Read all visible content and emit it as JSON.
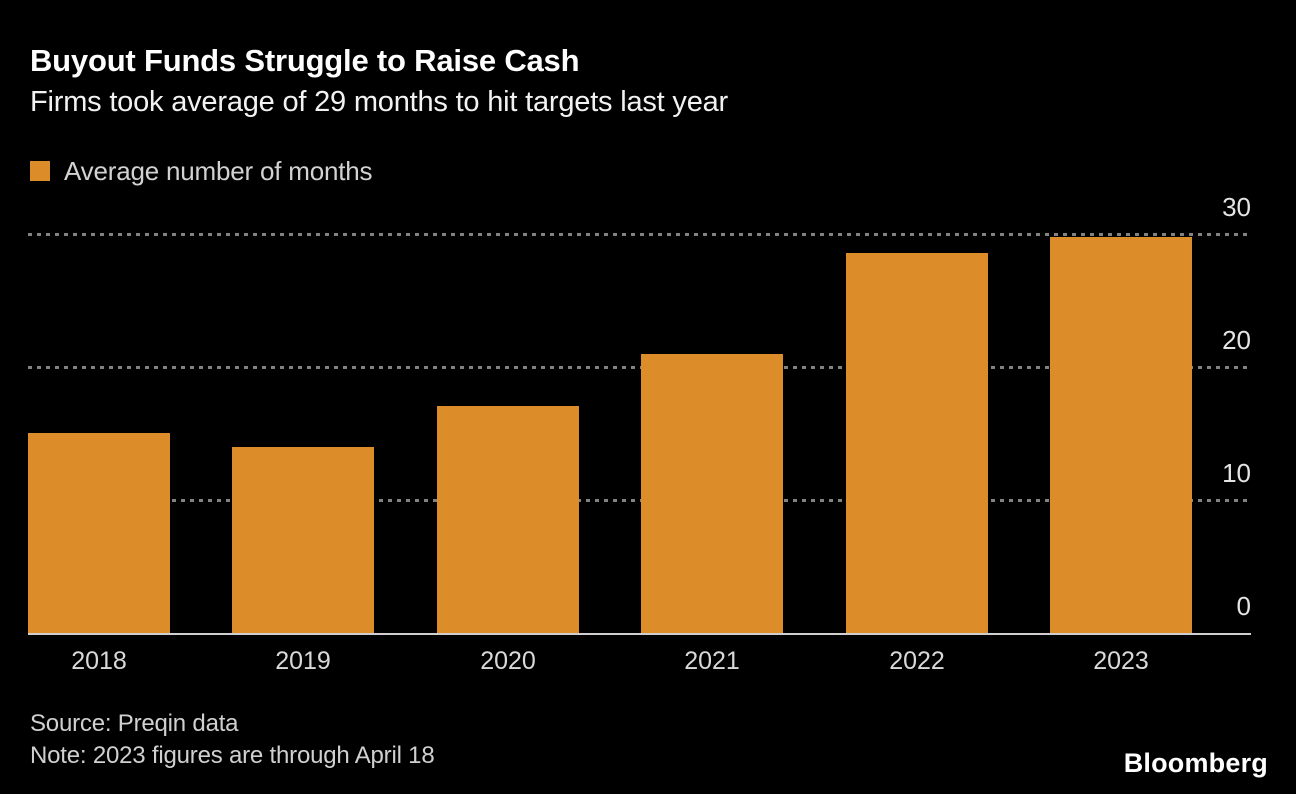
{
  "header": {
    "title": "Buyout Funds Struggle to Raise Cash",
    "subtitle": "Firms took average of 29 months to hit targets last year"
  },
  "legend": {
    "label": "Average number of months"
  },
  "chart_data": {
    "type": "bar",
    "title": "Buyout Funds Struggle to Raise Cash",
    "subtitle": "Firms took average of 29 months to hit targets last year",
    "series_name": "Average number of months",
    "categories": [
      "2018",
      "2019",
      "2020",
      "2021",
      "2022",
      "2023"
    ],
    "values": [
      15,
      14,
      17.1,
      21,
      28.6,
      29.8
    ],
    "xlabel": "",
    "ylabel": "",
    "ylim": [
      0,
      30
    ],
    "yticks": [
      0,
      10,
      20,
      30
    ],
    "grid": "horizontal dotted lines",
    "y_tick_labels_position": "right side, above gridlines",
    "legend_position": "top-left",
    "bar_color": "#DC8C28",
    "background_color": "#000000"
  },
  "footer": {
    "source": "Source: Preqin data",
    "note": "Note: 2023 figures are through April 18",
    "logo": "Bloomberg"
  },
  "colors": {
    "background": "#000000",
    "bar": "#DC8C28",
    "grid": "#828282",
    "axis": "#CFCFCF",
    "title_text": "#FFFFFF",
    "subtitle_text": "#F2F2F2",
    "legend_text": "#D2D2D2",
    "tick_text": "#E4E4E4",
    "year_text": "#D9D9D9",
    "source_text": "#D0D0D0",
    "logo_text": "#FFFFFF"
  }
}
